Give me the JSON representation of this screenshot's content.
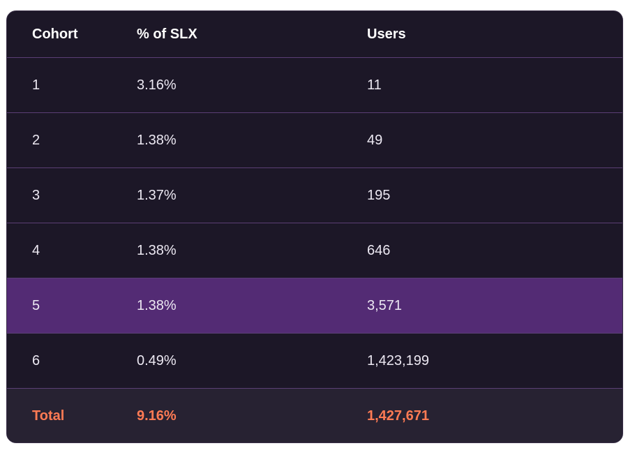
{
  "table": {
    "headers": {
      "cohort": "Cohort",
      "percent": "% of SLX",
      "users": "Users"
    },
    "rows": [
      {
        "cohort": "1",
        "percent": "3.16%",
        "users": "11"
      },
      {
        "cohort": "2",
        "percent": "1.38%",
        "users": "49"
      },
      {
        "cohort": "3",
        "percent": "1.37%",
        "users": "195"
      },
      {
        "cohort": "4",
        "percent": "1.38%",
        "users": "646"
      },
      {
        "cohort": "5",
        "percent": "1.38%",
        "users": "3,571"
      },
      {
        "cohort": "6",
        "percent": "0.49%",
        "users": "1,423,199"
      }
    ],
    "total": {
      "label": "Total",
      "percent": "9.16%",
      "users": "1,427,671"
    }
  },
  "colors": {
    "background": "#1c1727",
    "highlight_row": "#532b74",
    "total_row": "#272232",
    "divider": "#5b3f75",
    "total_text": "#ff7b54"
  }
}
